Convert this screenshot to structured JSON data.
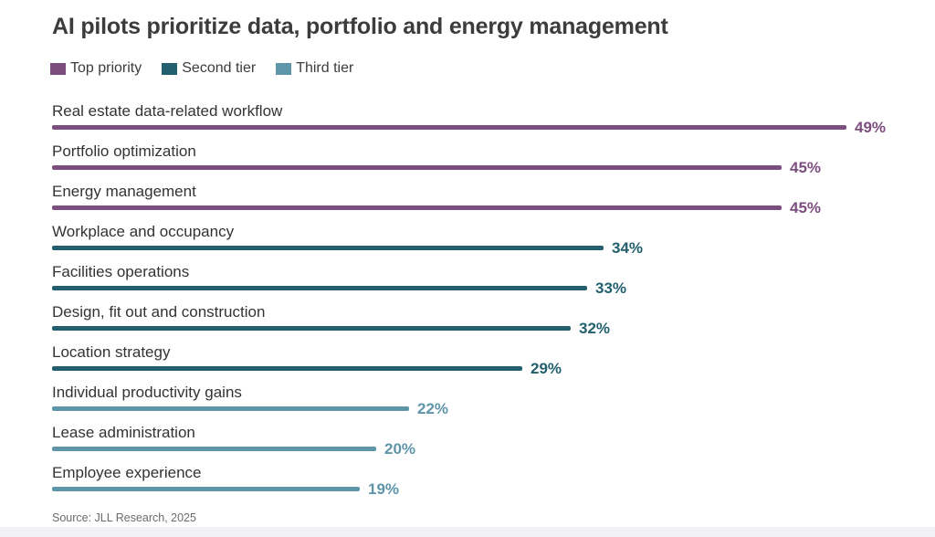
{
  "title": "AI pilots prioritize data, portfolio and energy management",
  "legend": {
    "items": [
      {
        "label": "Top priority",
        "color": "#7c4e80"
      },
      {
        "label": "Second tier",
        "color": "#235f6e"
      },
      {
        "label": "Third tier",
        "color": "#5f95a9"
      }
    ]
  },
  "source": "Source: JLL Research, 2025",
  "chart_data": {
    "type": "bar",
    "orientation": "horizontal",
    "title": "AI pilots prioritize data, portfolio and energy management",
    "categories": [
      "Real estate data-related workflow",
      "Portfolio optimization",
      "Energy management",
      "Workplace and occupancy",
      "Facilities operations",
      "Design, fit out and construction",
      "Location strategy",
      "Individual productivity gains",
      "Lease administration",
      "Employee experience"
    ],
    "values": [
      49,
      45,
      45,
      34,
      33,
      32,
      29,
      22,
      20,
      19
    ],
    "value_suffix": "%",
    "groups": [
      "Top priority",
      "Top priority",
      "Top priority",
      "Second tier",
      "Second tier",
      "Second tier",
      "Second tier",
      "Third tier",
      "Third tier",
      "Third tier"
    ],
    "series": [
      {
        "name": "Top priority",
        "color": "#7c4e80",
        "categories": [
          "Real estate data-related workflow",
          "Portfolio optimization",
          "Energy management"
        ],
        "values": [
          49,
          45,
          45
        ]
      },
      {
        "name": "Second tier",
        "color": "#235f6e",
        "categories": [
          "Workplace and occupancy",
          "Facilities operations",
          "Design, fit out and construction",
          "Location strategy"
        ],
        "values": [
          34,
          33,
          32,
          29
        ]
      },
      {
        "name": "Third tier",
        "color": "#5f95a9",
        "categories": [
          "Individual productivity gains",
          "Lease administration",
          "Employee experience"
        ],
        "values": [
          22,
          20,
          19
        ]
      }
    ],
    "xlim": [
      0,
      49
    ],
    "grid": false,
    "legend_position": "top",
    "xlabel": "",
    "ylabel": "",
    "source": "Source: JLL Research, 2025"
  }
}
